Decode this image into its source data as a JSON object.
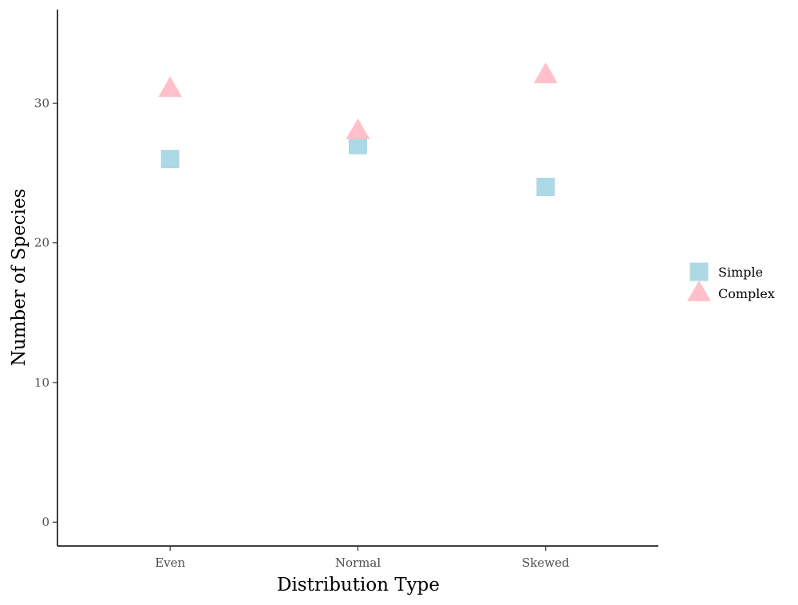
{
  "chart_data": {
    "type": "scatter",
    "title": "",
    "xlabel": "Distribution Type",
    "ylabel": "Number of Species",
    "categories": [
      "Even",
      "Normal",
      "Skewed"
    ],
    "ylim": [
      -1.7,
      36.7
    ],
    "yticks": [
      0,
      10,
      20,
      30
    ],
    "grid": false,
    "legend": "right",
    "series": [
      {
        "name": "Simple",
        "shape": "square",
        "color": "#ADD8E6",
        "values": [
          26,
          27,
          24
        ]
      },
      {
        "name": "Complex",
        "shape": "triangle",
        "color": "#FFC0CB",
        "values": [
          31,
          28,
          32
        ]
      }
    ]
  }
}
